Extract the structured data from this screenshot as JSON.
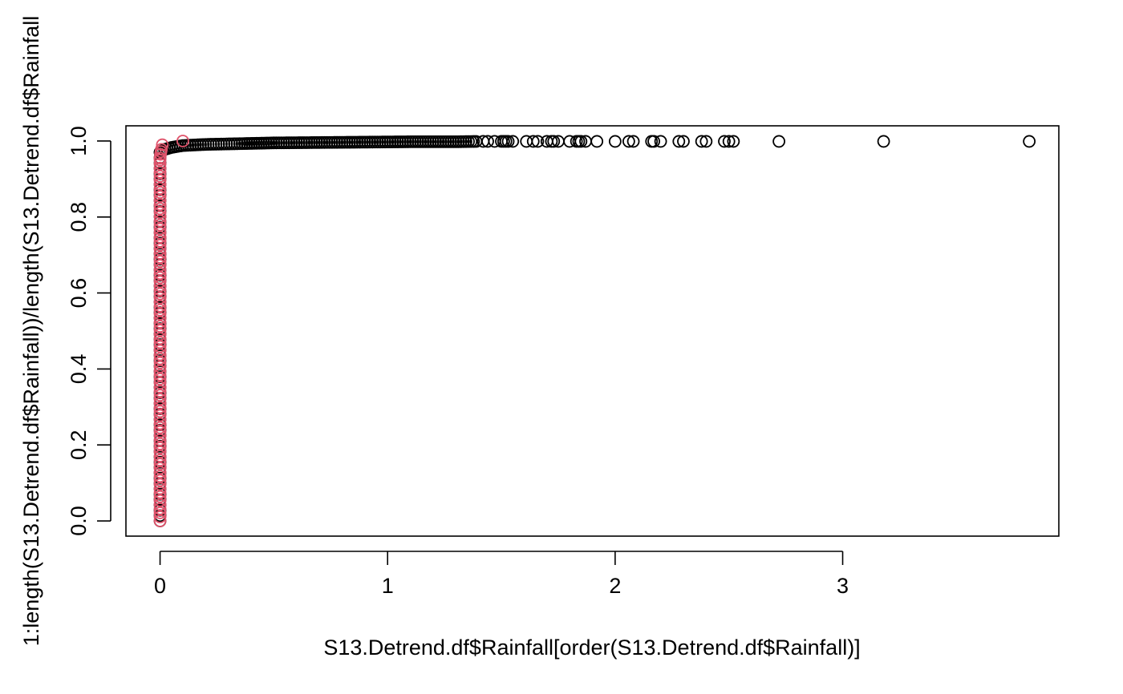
{
  "chart_data": {
    "type": "scatter",
    "title": "",
    "xlabel": "S13.Detrend.df$Rainfall[order(S13.Detrend.df$Rainfall)]",
    "ylabel": "1:length(S13.Detrend.df$Rainfall))/length(S13.Detrend.df$Rainfall",
    "xlim": [
      -0.15,
      3.95
    ],
    "ylim": [
      -0.04,
      1.04
    ],
    "grid": false,
    "legend": "none",
    "x_ticks": [
      0,
      1,
      2,
      3
    ],
    "x_tick_labels": [
      "0",
      "1",
      "2",
      "3"
    ],
    "y_ticks": [
      0.0,
      0.2,
      0.4,
      0.6,
      0.8,
      1.0
    ],
    "y_tick_labels": [
      "0.0",
      "0.2",
      "0.4",
      "0.6",
      "0.8",
      "1.0"
    ],
    "series": [
      {
        "color": "#000000",
        "marker": "open-circle",
        "cluster": {
          "x": 0,
          "y_from": 0.0,
          "y_to": 0.97,
          "count": 70
        },
        "curve": {
          "x": [
            0.0,
            0.02,
            0.05,
            0.1,
            0.2,
            0.35,
            0.5,
            0.7,
            0.9,
            1.1,
            1.3,
            1.4
          ],
          "y": [
            0.97,
            0.978,
            0.983,
            0.988,
            0.991,
            0.993,
            0.995,
            0.996,
            0.997,
            0.998,
            0.998,
            0.999
          ]
        },
        "x": [
          1.42,
          1.44,
          1.47,
          1.5,
          1.51,
          1.52,
          1.53,
          1.55,
          1.61,
          1.64,
          1.66,
          1.7,
          1.72,
          1.73,
          1.75,
          1.8,
          1.83,
          1.84,
          1.85,
          1.87,
          1.92,
          2.0,
          2.06,
          2.08,
          2.16,
          2.17,
          2.2,
          2.28,
          2.3,
          2.38,
          2.4,
          2.48,
          2.5,
          2.52,
          2.72,
          3.18,
          3.82
        ],
        "y": [
          0.999,
          0.999,
          0.999,
          0.999,
          0.999,
          0.999,
          0.999,
          0.999,
          0.999,
          0.999,
          0.999,
          0.999,
          0.999,
          0.999,
          0.999,
          0.999,
          0.999,
          0.999,
          0.999,
          0.999,
          0.999,
          0.999,
          0.999,
          0.999,
          0.999,
          0.999,
          0.999,
          0.999,
          0.999,
          0.999,
          0.999,
          0.999,
          0.999,
          0.999,
          0.999,
          0.999,
          0.999
        ]
      },
      {
        "color": "#DF536B",
        "marker": "open-circle",
        "cluster": {
          "x": 0,
          "y_from": 0.0,
          "y_to": 0.95,
          "count": 90
        },
        "x": [
          0.0,
          0.002,
          0.004,
          0.006,
          0.01,
          0.1
        ],
        "y": [
          0.955,
          0.965,
          0.972,
          0.978,
          0.99,
          1.0
        ]
      }
    ]
  }
}
